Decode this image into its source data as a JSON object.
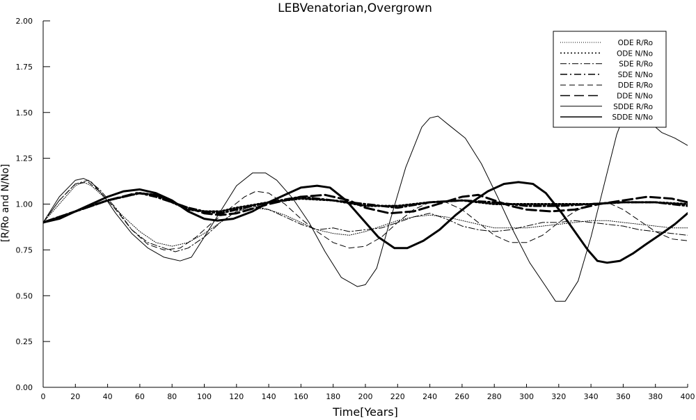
{
  "chart_data": {
    "type": "line",
    "title": "LEBVenatorian,Overgrown",
    "xlabel": "Time[Years]",
    "ylabel": "[R/Ro and N/No]",
    "xlim": [
      0,
      400
    ],
    "ylim": [
      0,
      2
    ],
    "x_ticks": [
      "0",
      "20",
      "40",
      "60",
      "80",
      "100",
      "120",
      "140",
      "160",
      "180",
      "200",
      "220",
      "240",
      "260",
      "280",
      "300",
      "320",
      "340",
      "360",
      "380",
      "400"
    ],
    "y_ticks": [
      "0.00",
      "0.25",
      "0.50",
      "0.75",
      "1.00",
      "1.25",
      "1.50",
      "1.75",
      "2.00"
    ],
    "grid": false,
    "legend_position": "top-right",
    "series": [
      {
        "name": "ODE R/Ro",
        "style": "dotted-thin",
        "points": [
          [
            0,
            0.9
          ],
          [
            10,
            1.0
          ],
          [
            20,
            1.1
          ],
          [
            25,
            1.12
          ],
          [
            30,
            1.1
          ],
          [
            40,
            1.02
          ],
          [
            50,
            0.93
          ],
          [
            60,
            0.85
          ],
          [
            70,
            0.79
          ],
          [
            80,
            0.77
          ],
          [
            90,
            0.79
          ],
          [
            100,
            0.84
          ],
          [
            110,
            0.9
          ],
          [
            120,
            0.96
          ],
          [
            130,
            0.98
          ],
          [
            140,
            0.97
          ],
          [
            150,
            0.94
          ],
          [
            160,
            0.9
          ],
          [
            170,
            0.86
          ],
          [
            180,
            0.84
          ],
          [
            190,
            0.83
          ],
          [
            200,
            0.85
          ],
          [
            210,
            0.88
          ],
          [
            220,
            0.91
          ],
          [
            230,
            0.93
          ],
          [
            240,
            0.94
          ],
          [
            250,
            0.93
          ],
          [
            260,
            0.91
          ],
          [
            270,
            0.89
          ],
          [
            280,
            0.87
          ],
          [
            290,
            0.87
          ],
          [
            300,
            0.87
          ],
          [
            310,
            0.88
          ],
          [
            320,
            0.89
          ],
          [
            330,
            0.9
          ],
          [
            340,
            0.91
          ],
          [
            350,
            0.91
          ],
          [
            360,
            0.9
          ],
          [
            370,
            0.89
          ],
          [
            380,
            0.88
          ],
          [
            390,
            0.87
          ],
          [
            400,
            0.87
          ]
        ]
      },
      {
        "name": "ODE N/No",
        "style": "dotted-thick",
        "points": [
          [
            0,
            0.9
          ],
          [
            20,
            0.96
          ],
          [
            40,
            1.02
          ],
          [
            60,
            1.06
          ],
          [
            70,
            1.05
          ],
          [
            80,
            1.01
          ],
          [
            90,
            0.97
          ],
          [
            100,
            0.96
          ],
          [
            110,
            0.96
          ],
          [
            120,
            0.98
          ],
          [
            140,
            1.01
          ],
          [
            160,
            1.03
          ],
          [
            180,
            1.02
          ],
          [
            200,
            0.99
          ],
          [
            220,
            0.99
          ],
          [
            240,
            1.01
          ],
          [
            260,
            1.02
          ],
          [
            280,
            1.0
          ],
          [
            300,
            1.0
          ],
          [
            320,
            1.0
          ],
          [
            340,
            1.0
          ],
          [
            360,
            1.01
          ],
          [
            380,
            1.01
          ],
          [
            400,
            1.0
          ]
        ]
      },
      {
        "name": "SDE R/Ro",
        "style": "dashdot-thin",
        "points": [
          [
            0,
            0.9
          ],
          [
            10,
            1.02
          ],
          [
            20,
            1.11
          ],
          [
            28,
            1.13
          ],
          [
            35,
            1.08
          ],
          [
            45,
            0.98
          ],
          [
            55,
            0.86
          ],
          [
            65,
            0.79
          ],
          [
            75,
            0.76
          ],
          [
            82,
            0.74
          ],
          [
            90,
            0.76
          ],
          [
            100,
            0.82
          ],
          [
            110,
            0.9
          ],
          [
            120,
            0.96
          ],
          [
            130,
            0.99
          ],
          [
            140,
            0.97
          ],
          [
            150,
            0.93
          ],
          [
            160,
            0.89
          ],
          [
            170,
            0.86
          ],
          [
            180,
            0.87
          ],
          [
            190,
            0.85
          ],
          [
            200,
            0.86
          ],
          [
            210,
            0.87
          ],
          [
            220,
            0.9
          ],
          [
            230,
            0.93
          ],
          [
            240,
            0.95
          ],
          [
            250,
            0.92
          ],
          [
            260,
            0.88
          ],
          [
            270,
            0.86
          ],
          [
            280,
            0.85
          ],
          [
            290,
            0.86
          ],
          [
            300,
            0.88
          ],
          [
            310,
            0.9
          ],
          [
            320,
            0.9
          ],
          [
            330,
            0.91
          ],
          [
            340,
            0.9
          ],
          [
            350,
            0.89
          ],
          [
            360,
            0.88
          ],
          [
            370,
            0.86
          ],
          [
            380,
            0.85
          ],
          [
            390,
            0.84
          ],
          [
            400,
            0.83
          ]
        ]
      },
      {
        "name": "SDE N/No",
        "style": "dashdot-thick",
        "points": [
          [
            0,
            0.9
          ],
          [
            20,
            0.96
          ],
          [
            40,
            1.02
          ],
          [
            60,
            1.06
          ],
          [
            70,
            1.04
          ],
          [
            80,
            1.01
          ],
          [
            90,
            0.98
          ],
          [
            100,
            0.96
          ],
          [
            110,
            0.95
          ],
          [
            120,
            0.97
          ],
          [
            140,
            1.01
          ],
          [
            160,
            1.04
          ],
          [
            180,
            1.02
          ],
          [
            200,
            1.0
          ],
          [
            220,
            0.98
          ],
          [
            240,
            1.01
          ],
          [
            260,
            1.02
          ],
          [
            280,
            1.01
          ],
          [
            300,
            0.99
          ],
          [
            320,
            0.99
          ],
          [
            340,
            1.0
          ],
          [
            360,
            1.01
          ],
          [
            380,
            1.01
          ],
          [
            400,
            0.99
          ]
        ]
      },
      {
        "name": "DDE R/Ro",
        "style": "dashed-thin",
        "points": [
          [
            0,
            0.9
          ],
          [
            10,
            1.02
          ],
          [
            20,
            1.11
          ],
          [
            28,
            1.12
          ],
          [
            35,
            1.07
          ],
          [
            45,
            0.97
          ],
          [
            55,
            0.86
          ],
          [
            65,
            0.78
          ],
          [
            75,
            0.75
          ],
          [
            85,
            0.76
          ],
          [
            95,
            0.82
          ],
          [
            105,
            0.9
          ],
          [
            115,
            0.97
          ],
          [
            125,
            1.04
          ],
          [
            132,
            1.07
          ],
          [
            140,
            1.06
          ],
          [
            150,
            1.0
          ],
          [
            160,
            0.92
          ],
          [
            170,
            0.85
          ],
          [
            180,
            0.79
          ],
          [
            190,
            0.76
          ],
          [
            200,
            0.77
          ],
          [
            210,
            0.82
          ],
          [
            220,
            0.9
          ],
          [
            230,
            0.97
          ],
          [
            240,
            1.01
          ],
          [
            250,
            1.01
          ],
          [
            260,
            0.97
          ],
          [
            270,
            0.9
          ],
          [
            280,
            0.83
          ],
          [
            290,
            0.79
          ],
          [
            300,
            0.79
          ],
          [
            310,
            0.83
          ],
          [
            320,
            0.9
          ],
          [
            330,
            0.96
          ],
          [
            340,
            1.0
          ],
          [
            350,
            1.01
          ],
          [
            360,
            0.97
          ],
          [
            370,
            0.91
          ],
          [
            380,
            0.85
          ],
          [
            390,
            0.81
          ],
          [
            400,
            0.8
          ]
        ]
      },
      {
        "name": "DDE N/No",
        "style": "dashed-thick",
        "points": [
          [
            0,
            0.9
          ],
          [
            20,
            0.96
          ],
          [
            40,
            1.02
          ],
          [
            58,
            1.06
          ],
          [
            70,
            1.05
          ],
          [
            80,
            1.01
          ],
          [
            90,
            0.98
          ],
          [
            100,
            0.95
          ],
          [
            110,
            0.94
          ],
          [
            120,
            0.95
          ],
          [
            140,
            1.0
          ],
          [
            160,
            1.04
          ],
          [
            175,
            1.05
          ],
          [
            190,
            1.02
          ],
          [
            200,
            0.98
          ],
          [
            215,
            0.95
          ],
          [
            230,
            0.96
          ],
          [
            245,
            1.0
          ],
          [
            260,
            1.04
          ],
          [
            270,
            1.05
          ],
          [
            280,
            1.02
          ],
          [
            290,
            0.99
          ],
          [
            300,
            0.97
          ],
          [
            315,
            0.96
          ],
          [
            330,
            0.97
          ],
          [
            345,
            1.0
          ],
          [
            360,
            1.02
          ],
          [
            375,
            1.04
          ],
          [
            390,
            1.03
          ],
          [
            400,
            1.01
          ]
        ]
      },
      {
        "name": "SDDE R/Ro",
        "style": "solid-thin",
        "points": [
          [
            0,
            0.9
          ],
          [
            10,
            1.04
          ],
          [
            20,
            1.13
          ],
          [
            25,
            1.14
          ],
          [
            30,
            1.12
          ],
          [
            38,
            1.04
          ],
          [
            45,
            0.95
          ],
          [
            55,
            0.84
          ],
          [
            65,
            0.76
          ],
          [
            75,
            0.71
          ],
          [
            85,
            0.69
          ],
          [
            92,
            0.71
          ],
          [
            100,
            0.82
          ],
          [
            110,
            0.96
          ],
          [
            120,
            1.1
          ],
          [
            130,
            1.17
          ],
          [
            138,
            1.17
          ],
          [
            145,
            1.13
          ],
          [
            155,
            1.03
          ],
          [
            165,
            0.9
          ],
          [
            175,
            0.74
          ],
          [
            185,
            0.6
          ],
          [
            195,
            0.55
          ],
          [
            200,
            0.56
          ],
          [
            207,
            0.65
          ],
          [
            215,
            0.9
          ],
          [
            225,
            1.2
          ],
          [
            235,
            1.42
          ],
          [
            240,
            1.47
          ],
          [
            245,
            1.48
          ],
          [
            252,
            1.43
          ],
          [
            262,
            1.36
          ],
          [
            272,
            1.22
          ],
          [
            282,
            1.04
          ],
          [
            292,
            0.85
          ],
          [
            302,
            0.68
          ],
          [
            312,
            0.55
          ],
          [
            318,
            0.47
          ],
          [
            324,
            0.47
          ],
          [
            332,
            0.58
          ],
          [
            340,
            0.82
          ],
          [
            348,
            1.1
          ],
          [
            356,
            1.38
          ],
          [
            362,
            1.52
          ],
          [
            372,
            1.48
          ],
          [
            384,
            1.39
          ],
          [
            392,
            1.36
          ],
          [
            400,
            1.32
          ]
        ]
      },
      {
        "name": "SDDE N/No",
        "style": "solid-thick",
        "points": [
          [
            0,
            0.9
          ],
          [
            10,
            0.92
          ],
          [
            20,
            0.96
          ],
          [
            30,
            1.0
          ],
          [
            40,
            1.04
          ],
          [
            50,
            1.07
          ],
          [
            60,
            1.08
          ],
          [
            70,
            1.06
          ],
          [
            80,
            1.02
          ],
          [
            90,
            0.96
          ],
          [
            100,
            0.92
          ],
          [
            108,
            0.91
          ],
          [
            118,
            0.92
          ],
          [
            130,
            0.96
          ],
          [
            140,
            1.01
          ],
          [
            150,
            1.05
          ],
          [
            160,
            1.09
          ],
          [
            170,
            1.1
          ],
          [
            178,
            1.09
          ],
          [
            188,
            1.02
          ],
          [
            198,
            0.92
          ],
          [
            208,
            0.82
          ],
          [
            218,
            0.76
          ],
          [
            226,
            0.76
          ],
          [
            236,
            0.8
          ],
          [
            246,
            0.86
          ],
          [
            256,
            0.94
          ],
          [
            266,
            1.01
          ],
          [
            276,
            1.07
          ],
          [
            286,
            1.11
          ],
          [
            295,
            1.12
          ],
          [
            304,
            1.11
          ],
          [
            312,
            1.06
          ],
          [
            322,
            0.95
          ],
          [
            330,
            0.85
          ],
          [
            338,
            0.75
          ],
          [
            344,
            0.69
          ],
          [
            350,
            0.68
          ],
          [
            358,
            0.69
          ],
          [
            366,
            0.73
          ],
          [
            374,
            0.78
          ],
          [
            384,
            0.84
          ],
          [
            392,
            0.89
          ],
          [
            400,
            0.95
          ]
        ]
      }
    ]
  }
}
